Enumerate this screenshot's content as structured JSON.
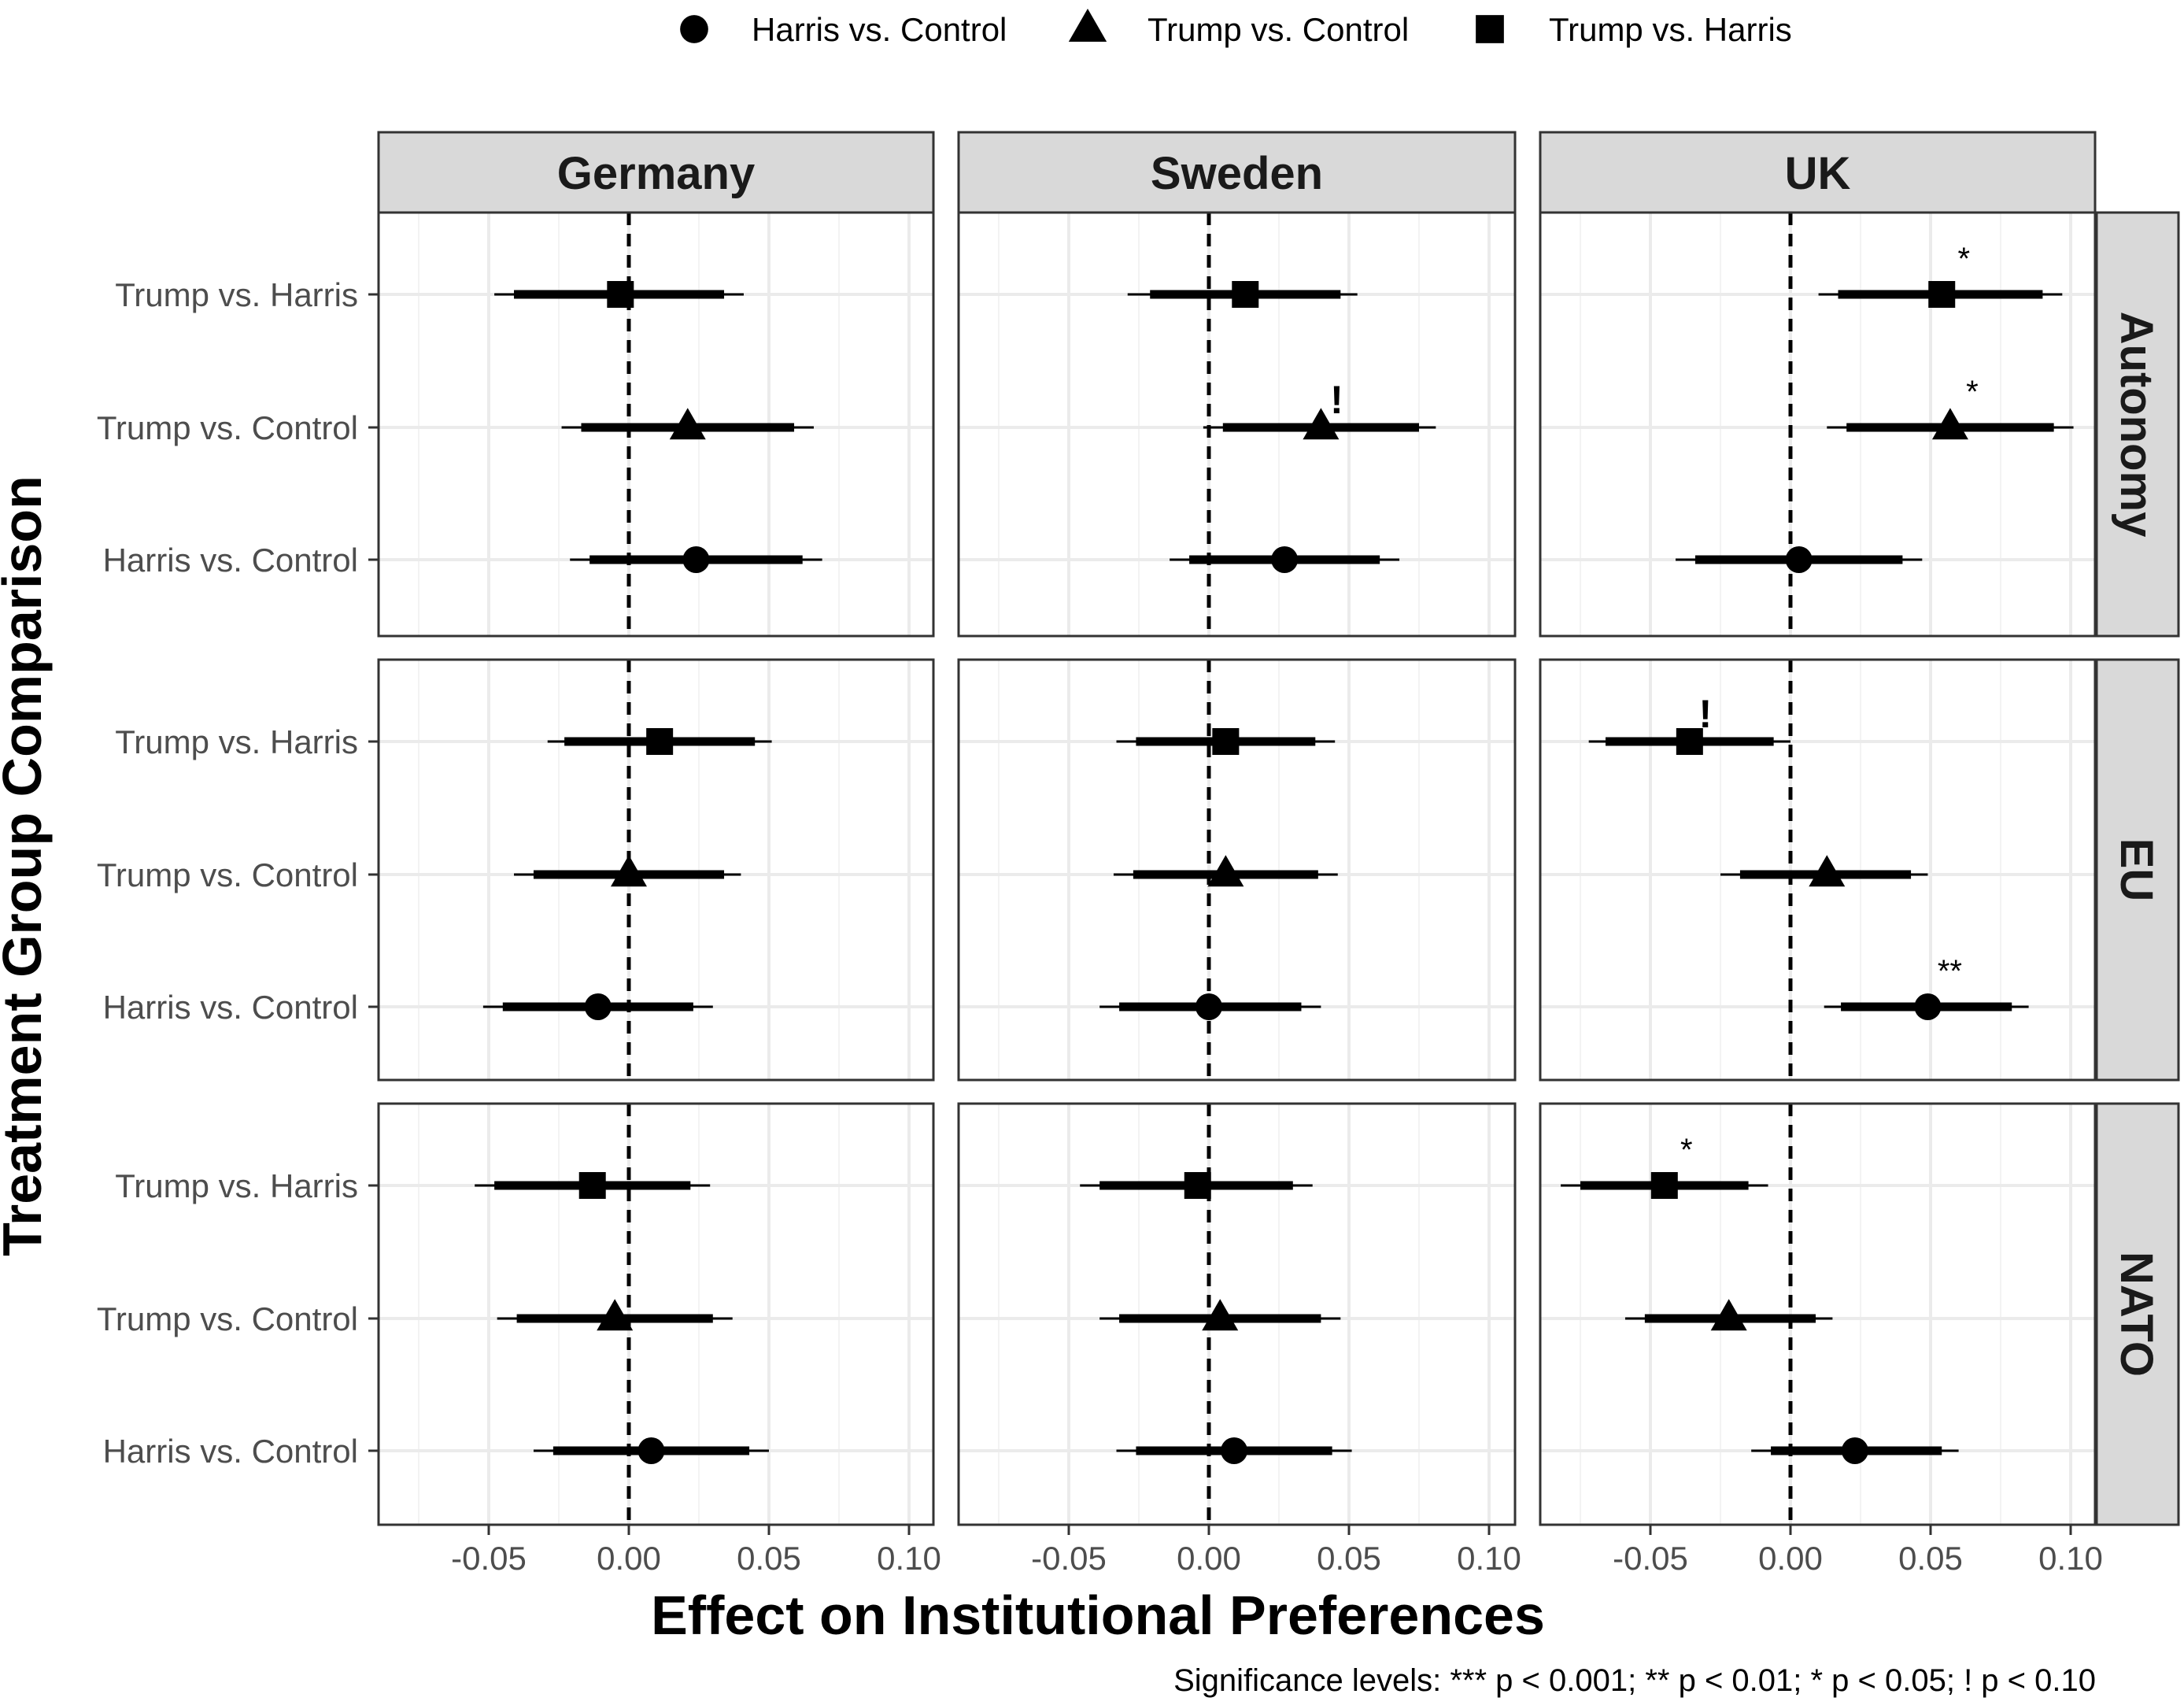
{
  "chart_data": {
    "type": "forest",
    "xlabel": "Effect on Institutional Preferences",
    "ylabel": "Treatment Group Comparison",
    "footnote": "Significance levels: *** p < 0.001; ** p < 0.01; * p < 0.05; ! p < 0.10",
    "x_ticks": [
      -0.05,
      0.0,
      0.05,
      0.1
    ],
    "x_tick_labels": [
      "-0.05",
      "0.00",
      "0.05",
      "0.10"
    ],
    "xlim": [
      -0.09,
      0.112
    ],
    "reference_line": 0,
    "columns": [
      "Germany",
      "Sweden",
      "UK"
    ],
    "rows": [
      "Autonomy",
      "EU",
      "NATO"
    ],
    "comparisons": [
      "Trump vs. Harris",
      "Trump vs. Control",
      "Harris vs. Control"
    ],
    "legend": [
      {
        "label": "Harris vs. Control",
        "shape": "circle"
      },
      {
        "label": "Trump vs. Control",
        "shape": "triangle"
      },
      {
        "label": "Trump vs. Harris",
        "shape": "square"
      }
    ],
    "shapes": {
      "Trump vs. Harris": "square",
      "Trump vs. Control": "triangle",
      "Harris vs. Control": "circle"
    },
    "points": [
      {
        "country": "Germany",
        "outcome": "Autonomy",
        "comparison": "Trump vs. Harris",
        "est": -0.003,
        "ci90": [
          -0.041,
          0.034
        ],
        "ci95": [
          -0.048,
          0.041
        ],
        "sig": ""
      },
      {
        "country": "Germany",
        "outcome": "Autonomy",
        "comparison": "Trump vs. Control",
        "est": 0.021,
        "ci90": [
          -0.017,
          0.059
        ],
        "ci95": [
          -0.024,
          0.066
        ],
        "sig": ""
      },
      {
        "country": "Germany",
        "outcome": "Autonomy",
        "comparison": "Harris vs. Control",
        "est": 0.024,
        "ci90": [
          -0.014,
          0.062
        ],
        "ci95": [
          -0.021,
          0.069
        ],
        "sig": ""
      },
      {
        "country": "Sweden",
        "outcome": "Autonomy",
        "comparison": "Trump vs. Harris",
        "est": 0.013,
        "ci90": [
          -0.021,
          0.047
        ],
        "ci95": [
          -0.029,
          0.053
        ],
        "sig": ""
      },
      {
        "country": "Sweden",
        "outcome": "Autonomy",
        "comparison": "Trump vs. Control",
        "est": 0.04,
        "ci90": [
          0.005,
          0.075
        ],
        "ci95": [
          -0.002,
          0.081
        ],
        "sig": "!"
      },
      {
        "country": "Sweden",
        "outcome": "Autonomy",
        "comparison": "Harris vs. Control",
        "est": 0.027,
        "ci90": [
          -0.007,
          0.061
        ],
        "ci95": [
          -0.014,
          0.068
        ],
        "sig": ""
      },
      {
        "country": "UK",
        "outcome": "Autonomy",
        "comparison": "Trump vs. Harris",
        "est": 0.054,
        "ci90": [
          0.017,
          0.09
        ],
        "ci95": [
          0.01,
          0.097
        ],
        "sig": "*"
      },
      {
        "country": "UK",
        "outcome": "Autonomy",
        "comparison": "Trump vs. Control",
        "est": 0.057,
        "ci90": [
          0.02,
          0.094
        ],
        "ci95": [
          0.013,
          0.101
        ],
        "sig": "*"
      },
      {
        "country": "UK",
        "outcome": "Autonomy",
        "comparison": "Harris vs. Control",
        "est": 0.003,
        "ci90": [
          -0.034,
          0.04
        ],
        "ci95": [
          -0.041,
          0.047
        ],
        "sig": ""
      },
      {
        "country": "Germany",
        "outcome": "EU",
        "comparison": "Trump vs. Harris",
        "est": 0.011,
        "ci90": [
          -0.023,
          0.045
        ],
        "ci95": [
          -0.029,
          0.051
        ],
        "sig": ""
      },
      {
        "country": "Germany",
        "outcome": "EU",
        "comparison": "Trump vs. Control",
        "est": 0.0,
        "ci90": [
          -0.034,
          0.034
        ],
        "ci95": [
          -0.041,
          0.04
        ],
        "sig": ""
      },
      {
        "country": "Germany",
        "outcome": "EU",
        "comparison": "Harris vs. Control",
        "est": -0.011,
        "ci90": [
          -0.045,
          0.023
        ],
        "ci95": [
          -0.052,
          0.03
        ],
        "sig": ""
      },
      {
        "country": "Sweden",
        "outcome": "EU",
        "comparison": "Trump vs. Harris",
        "est": 0.006,
        "ci90": [
          -0.026,
          0.038
        ],
        "ci95": [
          -0.033,
          0.045
        ],
        "sig": ""
      },
      {
        "country": "Sweden",
        "outcome": "EU",
        "comparison": "Trump vs. Control",
        "est": 0.006,
        "ci90": [
          -0.027,
          0.039
        ],
        "ci95": [
          -0.034,
          0.046
        ],
        "sig": ""
      },
      {
        "country": "Sweden",
        "outcome": "EU",
        "comparison": "Harris vs. Control",
        "est": 0.0,
        "ci90": [
          -0.032,
          0.033
        ],
        "ci95": [
          -0.039,
          0.04
        ],
        "sig": ""
      },
      {
        "country": "UK",
        "outcome": "EU",
        "comparison": "Trump vs. Harris",
        "est": -0.036,
        "ci90": [
          -0.066,
          -0.006
        ],
        "ci95": [
          -0.072,
          0.0
        ],
        "sig": "!"
      },
      {
        "country": "UK",
        "outcome": "EU",
        "comparison": "Trump vs. Control",
        "est": 0.013,
        "ci90": [
          -0.018,
          0.043
        ],
        "ci95": [
          -0.025,
          0.049
        ],
        "sig": ""
      },
      {
        "country": "UK",
        "outcome": "EU",
        "comparison": "Harris vs. Control",
        "est": 0.049,
        "ci90": [
          0.018,
          0.079
        ],
        "ci95": [
          0.012,
          0.085
        ],
        "sig": "**"
      },
      {
        "country": "Germany",
        "outcome": "NATO",
        "comparison": "Trump vs. Harris",
        "est": -0.013,
        "ci90": [
          -0.048,
          0.022
        ],
        "ci95": [
          -0.055,
          0.029
        ],
        "sig": ""
      },
      {
        "country": "Germany",
        "outcome": "NATO",
        "comparison": "Trump vs. Control",
        "est": -0.005,
        "ci90": [
          -0.04,
          0.03
        ],
        "ci95": [
          -0.047,
          0.037
        ],
        "sig": ""
      },
      {
        "country": "Germany",
        "outcome": "NATO",
        "comparison": "Harris vs. Control",
        "est": 0.008,
        "ci90": [
          -0.027,
          0.043
        ],
        "ci95": [
          -0.034,
          0.05
        ],
        "sig": ""
      },
      {
        "country": "Sweden",
        "outcome": "NATO",
        "comparison": "Trump vs. Harris",
        "est": -0.004,
        "ci90": [
          -0.039,
          0.03
        ],
        "ci95": [
          -0.046,
          0.037
        ],
        "sig": ""
      },
      {
        "country": "Sweden",
        "outcome": "NATO",
        "comparison": "Trump vs. Control",
        "est": 0.004,
        "ci90": [
          -0.032,
          0.04
        ],
        "ci95": [
          -0.039,
          0.047
        ],
        "sig": ""
      },
      {
        "country": "Sweden",
        "outcome": "NATO",
        "comparison": "Harris vs. Control",
        "est": 0.009,
        "ci90": [
          -0.026,
          0.044
        ],
        "ci95": [
          -0.033,
          0.051
        ],
        "sig": ""
      },
      {
        "country": "UK",
        "outcome": "NATO",
        "comparison": "Trump vs. Harris",
        "est": -0.045,
        "ci90": [
          -0.075,
          -0.015
        ],
        "ci95": [
          -0.082,
          -0.008
        ],
        "sig": "*"
      },
      {
        "country": "UK",
        "outcome": "NATO",
        "comparison": "Trump vs. Control",
        "est": -0.022,
        "ci90": [
          -0.052,
          0.009
        ],
        "ci95": [
          -0.059,
          0.015
        ],
        "sig": ""
      },
      {
        "country": "UK",
        "outcome": "NATO",
        "comparison": "Harris vs. Control",
        "est": 0.023,
        "ci90": [
          -0.007,
          0.054
        ],
        "ci95": [
          -0.014,
          0.06
        ],
        "sig": ""
      }
    ]
  }
}
